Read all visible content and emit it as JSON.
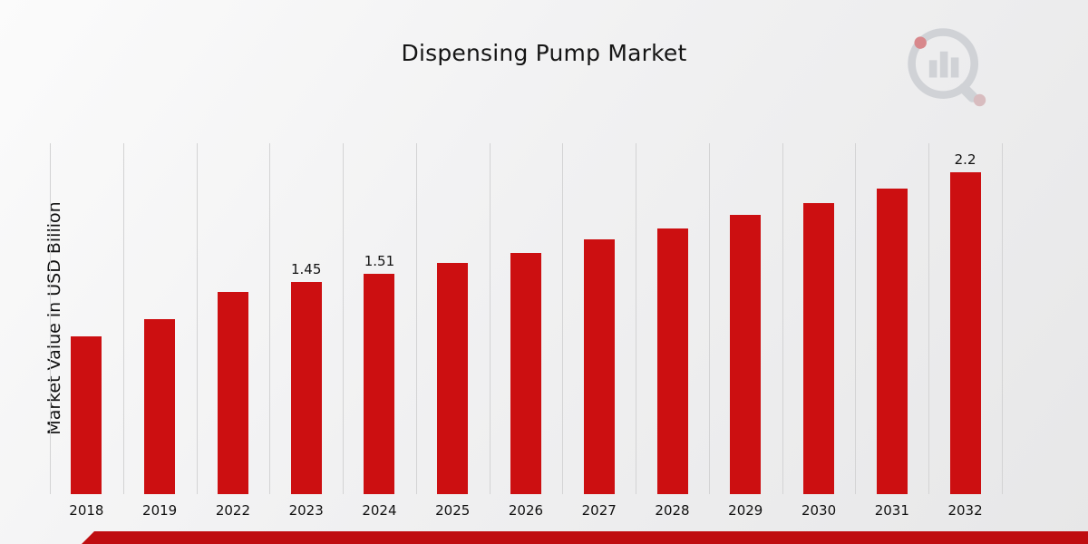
{
  "page": {
    "title": "Dispensing Pump Market"
  },
  "branding": {
    "logo_name": "market-research-logo",
    "accent_color": "#bf0d10"
  },
  "chart_data": {
    "type": "bar",
    "title": "Dispensing Pump Market",
    "xlabel": "",
    "ylabel": "Market Value in USD Billion",
    "categories": [
      "2018",
      "2019",
      "2022",
      "2023",
      "2024",
      "2025",
      "2026",
      "2027",
      "2028",
      "2029",
      "2030",
      "2031",
      "2032"
    ],
    "values": [
      1.08,
      1.2,
      1.38,
      1.45,
      1.51,
      1.58,
      1.65,
      1.74,
      1.82,
      1.91,
      1.99,
      2.09,
      2.2
    ],
    "point_labels": [
      null,
      null,
      null,
      "1.45",
      "1.51",
      null,
      null,
      null,
      null,
      null,
      null,
      null,
      "2.2"
    ],
    "ylim": [
      0,
      2.4
    ],
    "bar_color": "#cc0f11",
    "grid": "vertical-only",
    "legend": "none"
  }
}
